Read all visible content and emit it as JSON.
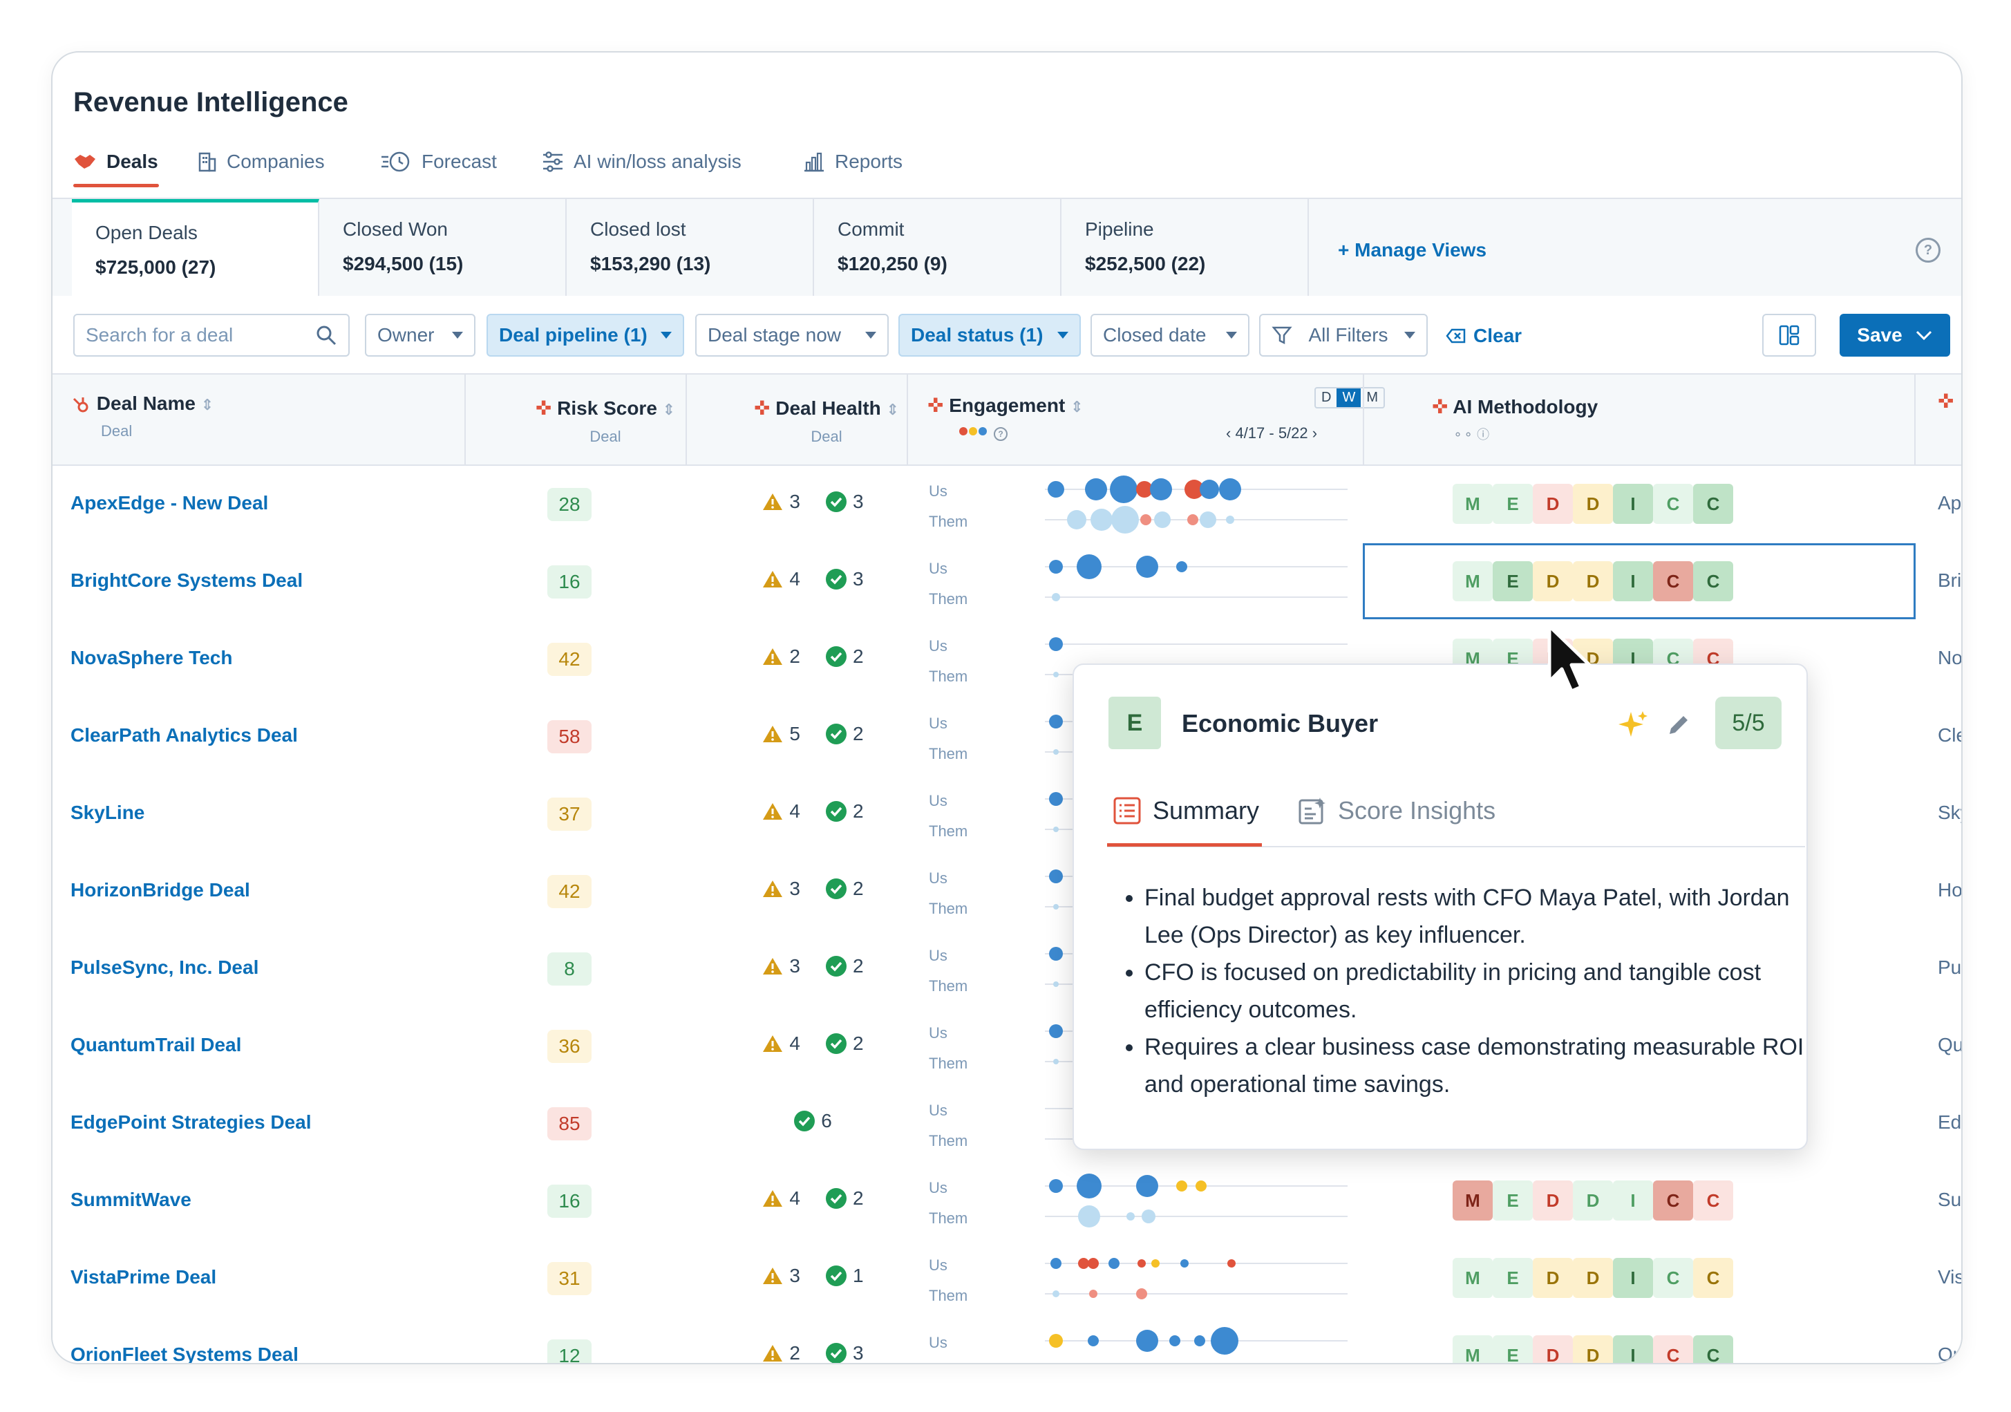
{
  "app": {
    "title": "Revenue Intelligence"
  },
  "tabs": [
    {
      "label": "Deals",
      "icon": "handshake-icon"
    },
    {
      "label": "Companies",
      "icon": "building-icon"
    },
    {
      "label": "Forecast",
      "icon": "clock-icon"
    },
    {
      "label": "AI win/loss analysis",
      "icon": "sliders-icon"
    },
    {
      "label": "Reports",
      "icon": "bar-chart-icon"
    }
  ],
  "views": [
    {
      "name": "Open Deals",
      "value": "$725,000 (27)"
    },
    {
      "name": "Closed Won",
      "value": "$294,500 (15)"
    },
    {
      "name": "Closed lost",
      "value": "$153,290 (13)"
    },
    {
      "name": "Commit",
      "value": "$120,250 (9)"
    },
    {
      "name": "Pipeline",
      "value": "$252,500 (22)"
    }
  ],
  "manage_views": "+ Manage Views",
  "filters": {
    "search_placeholder": "Search for a deal",
    "owner": "Owner",
    "deal_pipeline": "Deal pipeline (1)",
    "deal_stage": "Deal stage now",
    "deal_status": "Deal status (1)",
    "closed_date": "Closed date",
    "all_filters": "All Filters",
    "clear": "Clear",
    "save": "Save"
  },
  "columns": {
    "deal_name": "Deal Name",
    "deal_name_sub": "Deal",
    "risk": "Risk Score",
    "risk_sub": "Deal",
    "health": "Deal Health",
    "health_sub": "Deal",
    "engagement": "Engagement",
    "eng_range": "4/17 - 5/22",
    "eng_toggle": [
      "D",
      "W",
      "M"
    ],
    "methodology": "AI Methodology"
  },
  "eng_labels": {
    "us": "Us",
    "them": "Them"
  },
  "colors": {
    "blue": "#0b6fb8",
    "accent": "#e0533c",
    "teal": "#00bda5"
  },
  "deals": [
    {
      "name": "ApexEdge - New Deal",
      "risk": "28",
      "risk_level": "low",
      "warn": "3",
      "ok": "3",
      "meth": [
        "g",
        "g",
        "r",
        "y",
        "G",
        "g",
        "G"
      ],
      "last": "Ape"
    },
    {
      "name": "BrightCore Systems Deal",
      "risk": "16",
      "risk_level": "low",
      "warn": "4",
      "ok": "3",
      "meth": [
        "g",
        "G",
        "y",
        "y",
        "G",
        "R",
        "G"
      ],
      "last": "Brig"
    },
    {
      "name": "NovaSphere Tech",
      "risk": "42",
      "risk_level": "mid",
      "warn": "2",
      "ok": "2",
      "meth": [
        "g",
        "g",
        "r",
        "y",
        "G",
        "g",
        "r"
      ],
      "last": "Nov"
    },
    {
      "name": "ClearPath Analytics Deal",
      "risk": "58",
      "risk_level": "high",
      "warn": "5",
      "ok": "2",
      "meth": [
        "g",
        "g",
        "r",
        "y",
        "G",
        "g",
        "y"
      ],
      "last": "Cle"
    },
    {
      "name": "SkyLine",
      "risk": "37",
      "risk_level": "mid",
      "warn": "4",
      "ok": "2",
      "meth": [
        "g",
        "g",
        "r",
        "y",
        "G",
        "Y",
        "r"
      ],
      "last": "Sky"
    },
    {
      "name": "HorizonBridge Deal",
      "risk": "42",
      "risk_level": "mid",
      "warn": "3",
      "ok": "2",
      "meth": [
        "g",
        "g",
        "r",
        "y",
        "G",
        "g",
        "G"
      ],
      "last": "Hor"
    },
    {
      "name": "PulseSync, Inc. Deal",
      "risk": "8",
      "risk_level": "low",
      "warn": "3",
      "ok": "2",
      "meth": [
        "g",
        "g",
        "r",
        "y",
        "G",
        "G",
        "G"
      ],
      "last": "Pul"
    },
    {
      "name": "QuantumTrail Deal",
      "risk": "36",
      "risk_level": "mid",
      "warn": "4",
      "ok": "2",
      "meth": [
        "g",
        "g",
        "r",
        "y",
        "G",
        "y",
        "g"
      ],
      "last": "Qua"
    },
    {
      "name": "EdgePoint Strategies Deal",
      "risk": "85",
      "risk_level": "high",
      "warn": "",
      "ok": "6",
      "meth": [
        "R",
        "R",
        "R",
        "R",
        "R",
        "R",
        "R"
      ],
      "last": "Edg"
    },
    {
      "name": "SummitWave",
      "risk": "16",
      "risk_level": "low",
      "warn": "4",
      "ok": "2",
      "meth": [
        "R",
        "g",
        "r",
        "g",
        "g",
        "R",
        "r"
      ],
      "last": "Sur"
    },
    {
      "name": "VistaPrime Deal",
      "risk": "31",
      "risk_level": "mid",
      "warn": "3",
      "ok": "1",
      "meth": [
        "g",
        "g",
        "y",
        "y",
        "G",
        "g",
        "y"
      ],
      "last": "Vis"
    },
    {
      "name": "OrionFleet Systems Deal",
      "risk": "12",
      "risk_level": "low",
      "warn": "2",
      "ok": "3",
      "meth": [
        "g",
        "g",
        "r",
        "y",
        "G",
        "r",
        "G"
      ],
      "last": "Ori"
    }
  ],
  "meth_letters": [
    "M",
    "E",
    "D",
    "D",
    "I",
    "C",
    "C"
  ],
  "popup": {
    "letter": "E",
    "title": "Economic Buyer",
    "score": "5/5",
    "tab_summary": "Summary",
    "tab_insights": "Score Insights",
    "bullets": [
      "Final budget approval rests with CFO Maya Patel, with Jordan Lee (Ops Director) as key influencer.",
      "CFO is focused on predictability in pricing and tangible cost efficiency outcomes.",
      "Requires a clear business case demonstrating measurable ROI and operational time savings."
    ]
  }
}
